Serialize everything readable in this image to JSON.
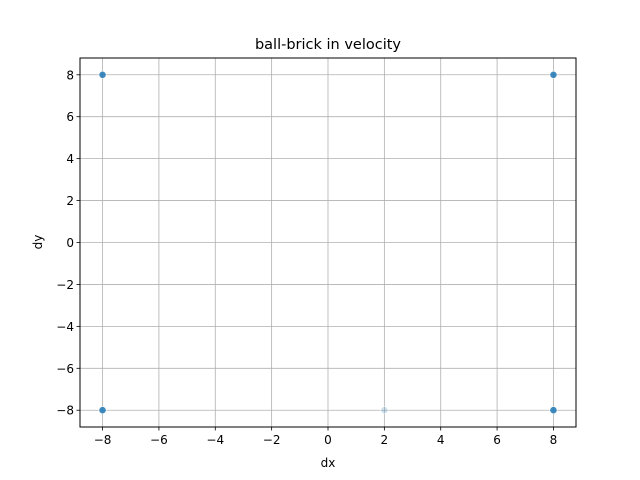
{
  "chart_data": {
    "type": "scatter",
    "title": "ball-brick in velocity",
    "xlabel": "dx",
    "ylabel": "dy",
    "xlim": [
      -8.8,
      8.8
    ],
    "ylim": [
      -8.8,
      8.8
    ],
    "xticks": [
      -8,
      -6,
      -4,
      -2,
      0,
      2,
      4,
      6,
      8
    ],
    "yticks": [
      -8,
      -6,
      -4,
      -2,
      0,
      2,
      4,
      6,
      8
    ],
    "xtick_labels": [
      "−8",
      "−6",
      "−4",
      "−2",
      "0",
      "2",
      "4",
      "6",
      "8"
    ],
    "ytick_labels": [
      "−8",
      "−6",
      "−4",
      "−2",
      "0",
      "2",
      "4",
      "6",
      "8"
    ],
    "grid": true,
    "marker_color": "#1f77b4",
    "points": [
      {
        "x": -8,
        "y": 8,
        "opacity": 0.85
      },
      {
        "x": 8,
        "y": 8,
        "opacity": 0.85
      },
      {
        "x": -8,
        "y": -8,
        "opacity": 0.85
      },
      {
        "x": 8,
        "y": -8,
        "opacity": 0.85
      },
      {
        "x": 2,
        "y": -8,
        "opacity": 0.2
      }
    ]
  }
}
